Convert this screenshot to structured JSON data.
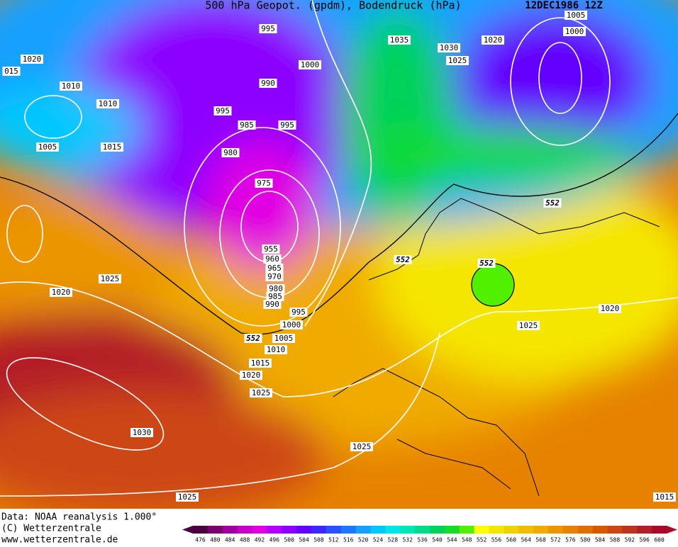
{
  "header": {
    "title": "500 hPa Geopot. (gpdm), Bodendruck (hPa)",
    "date": "12DEC1986 12Z"
  },
  "isobar_labels": [
    "995",
    "1035",
    "1030",
    "1020",
    "1005",
    "1000",
    "1025",
    "1020",
    "015",
    "1010",
    "1010",
    "1000",
    "990",
    "995",
    "985",
    "995",
    "1005",
    "1015",
    "980",
    "975",
    "955",
    "960",
    "965",
    "970",
    "980",
    "985",
    "990",
    "995",
    "1000",
    "1005",
    "1010",
    "1015",
    "1020",
    "1025",
    "1025",
    "1020",
    "1030",
    "1025",
    "1025",
    "1015",
    "1020",
    "1025"
  ],
  "geopotential_labels": [
    "552",
    "552",
    "552",
    "552"
  ],
  "footer": {
    "source": "Data: NOAA reanalysis 1.000°",
    "copyright": "(C) Wetterzentrale",
    "url": "www.wetterzentrale.de"
  },
  "color_scale": {
    "ticks": [
      476,
      480,
      484,
      488,
      492,
      496,
      500,
      504,
      508,
      512,
      516,
      520,
      524,
      528,
      532,
      536,
      540,
      544,
      548,
      552,
      556,
      560,
      564,
      568,
      572,
      576,
      580,
      584,
      588,
      592,
      596,
      600
    ],
    "colors": [
      "#4b0040",
      "#7a0070",
      "#a000a0",
      "#c800c8",
      "#e100e1",
      "#b400ff",
      "#8c00ff",
      "#6400ff",
      "#3c28ff",
      "#2850ff",
      "#1e78ff",
      "#14a0ff",
      "#00c8ff",
      "#00e6e6",
      "#00e6b4",
      "#00dc8c",
      "#00d25a",
      "#14dc28",
      "#50f000",
      "#ffff00",
      "#f5e600",
      "#f0d200",
      "#f0be00",
      "#f0aa00",
      "#eb9600",
      "#e68200",
      "#e16e00",
      "#d75a00",
      "#cd4614",
      "#be321e",
      "#b41e28",
      "#aa0a28"
    ]
  }
}
